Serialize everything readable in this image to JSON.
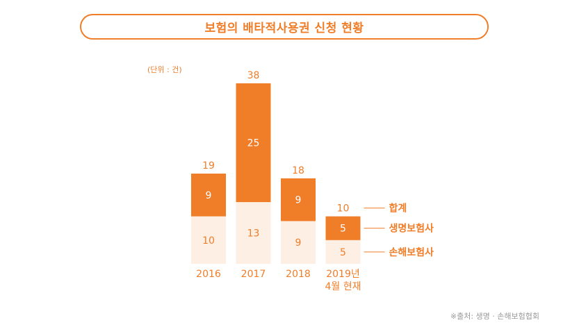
{
  "title": "보험의 배타적사용권 신청 현황",
  "unit_note": "(단위 : 건)",
  "source_note": "※출처: 생명 · 손해보험협회",
  "colors": {
    "accent": "#f07d28",
    "life": "#f07d28",
    "nonlife": "#fdefe3",
    "nonlife_text": "#f07d28",
    "life_text": "#ffffff",
    "total_text": "#f07d28"
  },
  "chart_data": {
    "type": "bar",
    "stacked": true,
    "title": "보험의 배타적사용권 신청 현황",
    "unit": "건",
    "categories": [
      [
        "2016"
      ],
      [
        "2017"
      ],
      [
        "2018"
      ],
      [
        "2019년",
        "4월 현재"
      ]
    ],
    "series": [
      {
        "name": "손해보험사",
        "values": [
          10,
          13,
          9,
          5
        ]
      },
      {
        "name": "생명보험사",
        "values": [
          9,
          25,
          9,
          5
        ]
      }
    ],
    "totals_name": "합계",
    "totals": [
      19,
      38,
      18,
      10
    ],
    "legend": {
      "placement": "right",
      "entries": [
        "합계",
        "생명보험사",
        "손해보험사"
      ]
    },
    "ylim": [
      0,
      38
    ]
  }
}
